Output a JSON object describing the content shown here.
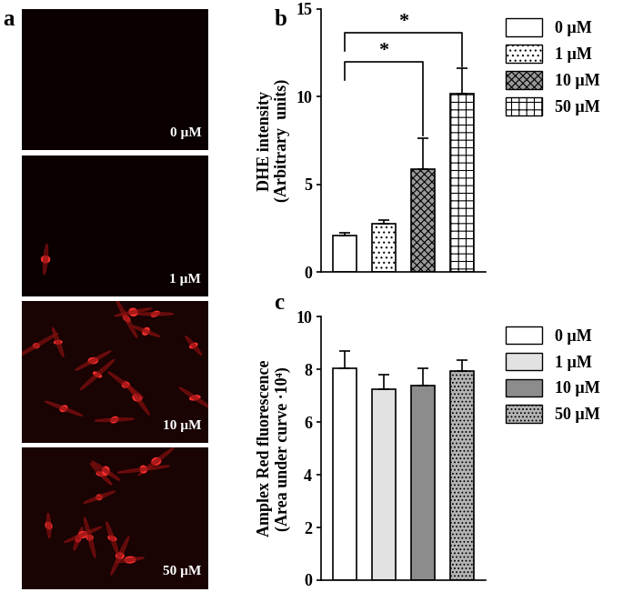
{
  "image_panel": {
    "label": "a",
    "images": [
      {
        "label": "0 µM"
      },
      {
        "label": "1 µM"
      },
      {
        "label": "10 µM"
      },
      {
        "label": "50 µM"
      }
    ]
  },
  "chart_data": [
    {
      "type": "bar",
      "title": "b",
      "ylabel": "DHE intensity\n(Arbitrary  units)",
      "ylim": [
        0,
        15
      ],
      "yticks": [
        0,
        5,
        10,
        15
      ],
      "tick_labels": "y",
      "legend": "upper left",
      "series": [
        {
          "name": "0 µM",
          "color": "#ffffff",
          "values": [
            2.1
          ],
          "error": [
            0.15
          ]
        },
        {
          "name": "1 µM",
          "color": "#ffffff",
          "values": [
            2.75
          ],
          "error": [
            0.25
          ]
        },
        {
          "name": "10 µM",
          "color": "#9a9a9a",
          "values": [
            5.85
          ],
          "error": [
            1.8
          ]
        },
        {
          "name": "50 µM",
          "color": "#ffffff",
          "values": [
            10.15
          ],
          "error": [
            1.45
          ]
        }
      ],
      "annotations": [
        {
          "text": "*",
          "from": "0 µM",
          "to": "10 µM"
        },
        {
          "text": "*",
          "from": "0 µM",
          "to": "50 µM"
        }
      ]
    },
    {
      "type": "bar",
      "title": "c",
      "ylabel": "Amplex Red fluorescence\n(Area under curve ·10⁴)",
      "ylim": [
        0,
        10
      ],
      "yticks": [
        0,
        2,
        4,
        6,
        8,
        10
      ],
      "tick_labels": "y",
      "legend": "upper left",
      "series": [
        {
          "name": "0 µM",
          "color": "#ffffff",
          "values": [
            8.05
          ],
          "error": [
            0.65
          ]
        },
        {
          "name": "1 µM",
          "color": "#e2e2e2",
          "values": [
            7.25
          ],
          "error": [
            0.55
          ]
        },
        {
          "name": "10 µM",
          "color": "#8c8c8c",
          "values": [
            7.4
          ],
          "error": [
            0.65
          ]
        },
        {
          "name": "50 µM",
          "color": "#b4b4b4",
          "values": [
            7.95
          ],
          "error": [
            0.4
          ]
        }
      ]
    }
  ]
}
